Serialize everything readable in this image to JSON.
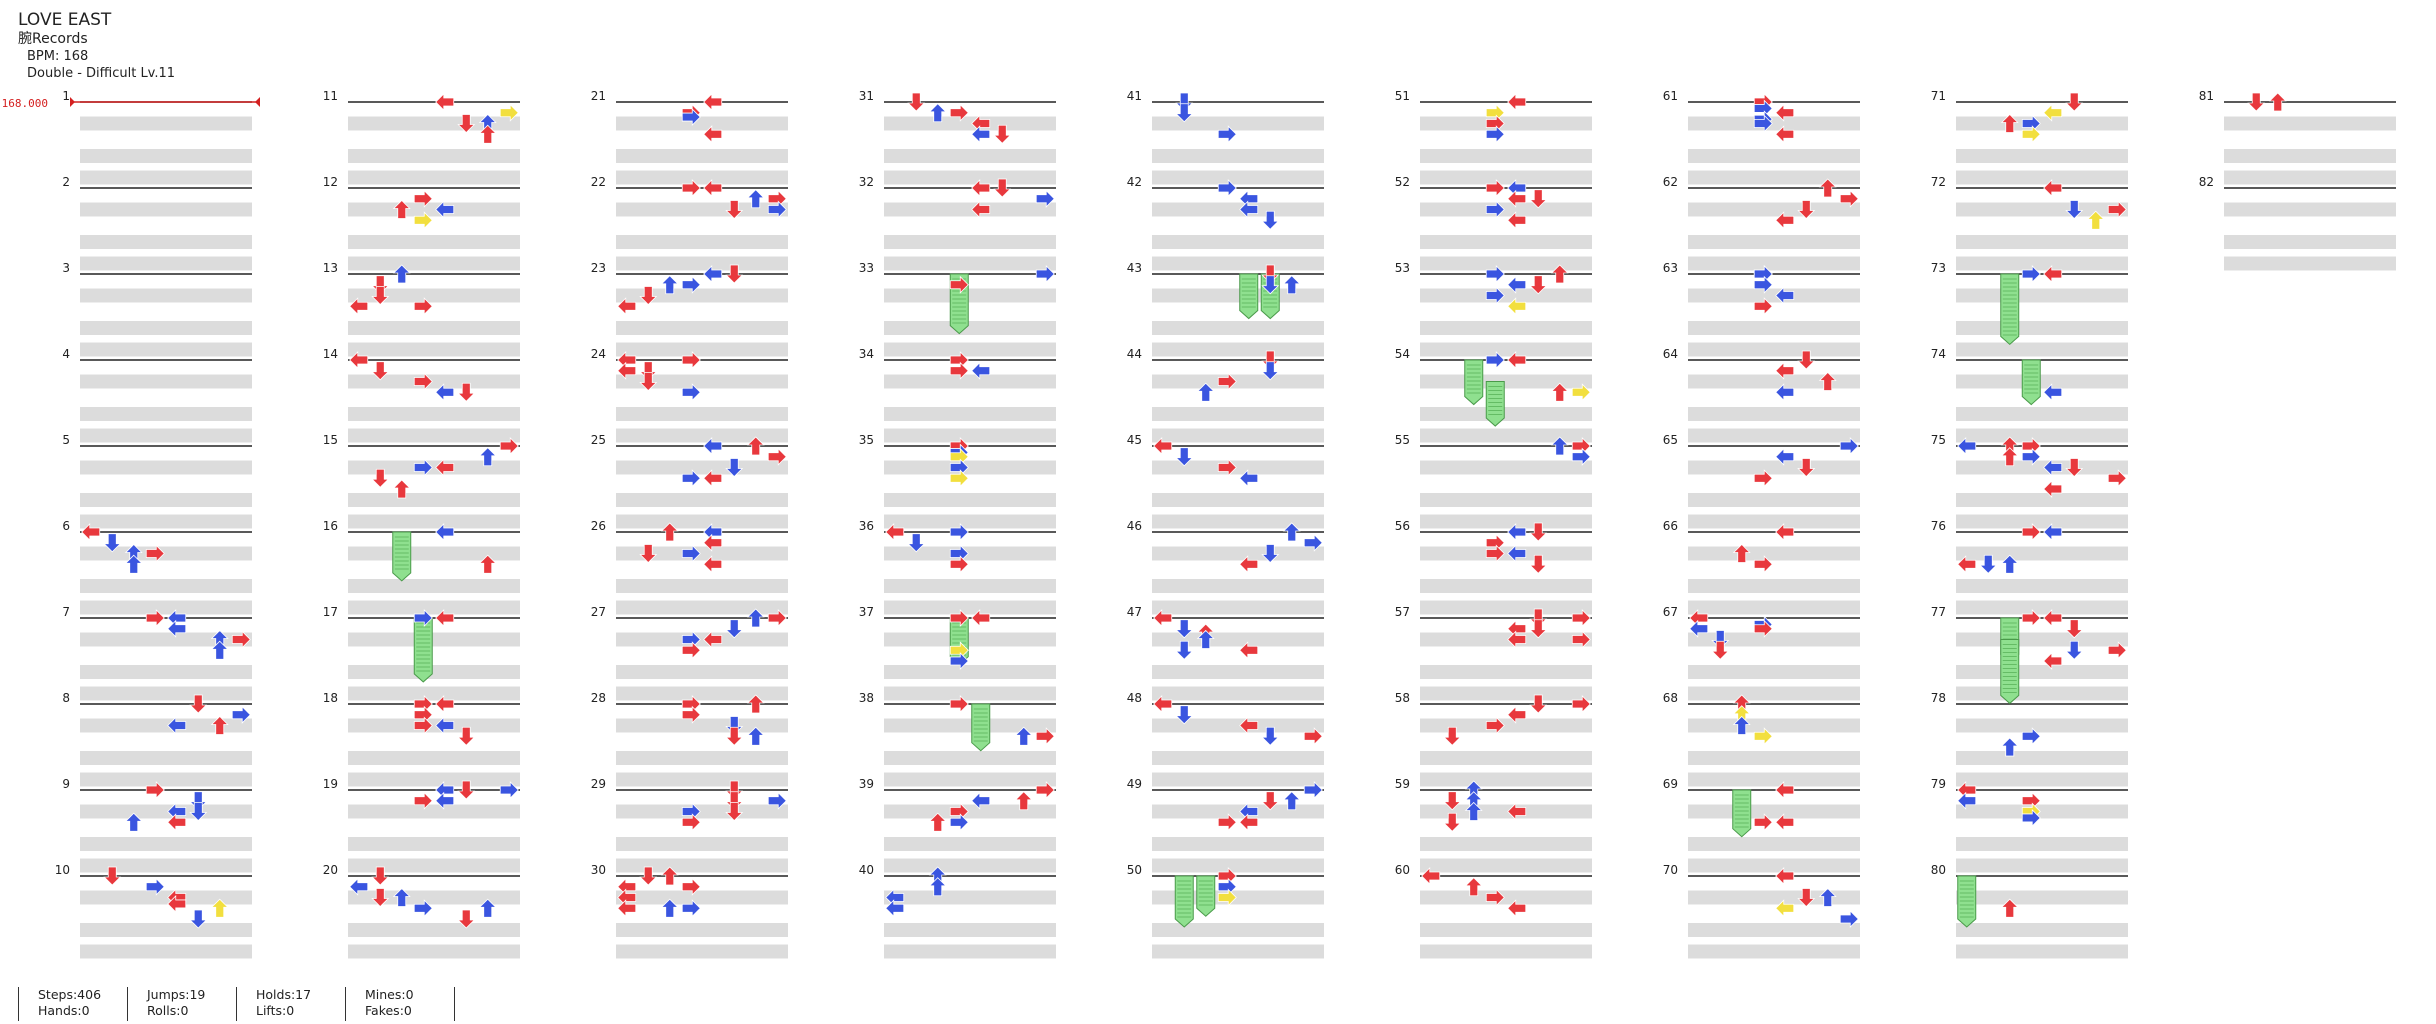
{
  "song": {
    "title": "LOVE EAST",
    "artist": "腕Records",
    "bpm_line": "BPM: 168",
    "difficulty_line": "Double - Difficult  Lv.11"
  },
  "bpm_marker": {
    "label": "168.000"
  },
  "colors": {
    "red": "#e8383d",
    "blue": "#3a55e0",
    "yellow": "#f2df3e",
    "hold": "#8fe08f",
    "band": "#dcdcdc",
    "line": "#222222"
  },
  "measure_numbers": [
    "1",
    "2",
    "3",
    "4",
    "5",
    "6",
    "7",
    "8",
    "9",
    "10",
    "11",
    "12",
    "13",
    "14",
    "15",
    "16",
    "17",
    "18",
    "19",
    "20",
    "21",
    "22",
    "23",
    "24",
    "25",
    "26",
    "27",
    "28",
    "29",
    "30",
    "31",
    "32",
    "33",
    "34",
    "35",
    "36",
    "37",
    "38",
    "39",
    "40",
    "41",
    "42",
    "43",
    "44",
    "45",
    "46",
    "47",
    "48",
    "49",
    "50",
    "51",
    "52",
    "53",
    "54",
    "55",
    "56",
    "57",
    "58",
    "59",
    "60",
    "61",
    "62",
    "63",
    "64",
    "65",
    "66",
    "67",
    "68",
    "69",
    "70",
    "71",
    "72",
    "73",
    "74",
    "75",
    "76",
    "77",
    "78",
    "79",
    "80",
    "81",
    "82"
  ],
  "stats": {
    "steps": "Steps:406",
    "hands": "Hands:0",
    "jumps": "Jumps:19",
    "rolls": "Rolls:0",
    "holds": "Holds:17",
    "lifts": "Lifts:0",
    "mines": "Mines:0",
    "fakes": "Fakes:0"
  }
}
